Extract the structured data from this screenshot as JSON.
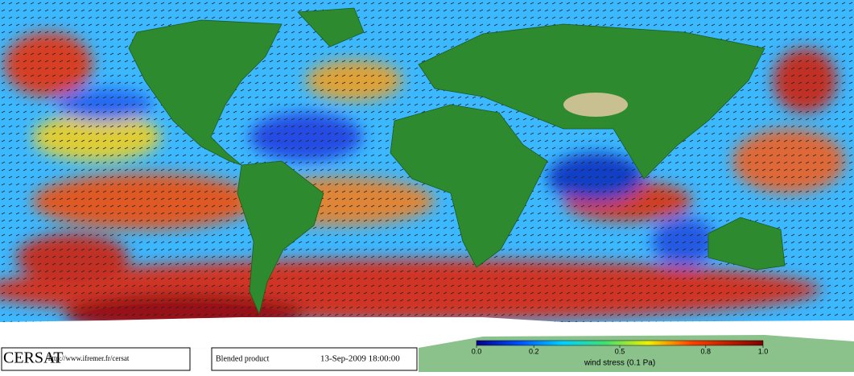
{
  "header": {
    "logo": "CERSAT",
    "url": "http://www.ifremer.fr/cersat"
  },
  "product": {
    "name": "Blended product",
    "timestamp": "13-Sep-2009 18:00:00"
  },
  "colorbar": {
    "label": "wind stress (0.1 Pa)",
    "lim": [
      0,
      1
    ],
    "ticks": [
      {
        "value": 0,
        "label": "0.0"
      },
      0.2,
      0.5,
      0.8,
      {
        "value": 1,
        "label": "1.0"
      }
    ]
  }
}
